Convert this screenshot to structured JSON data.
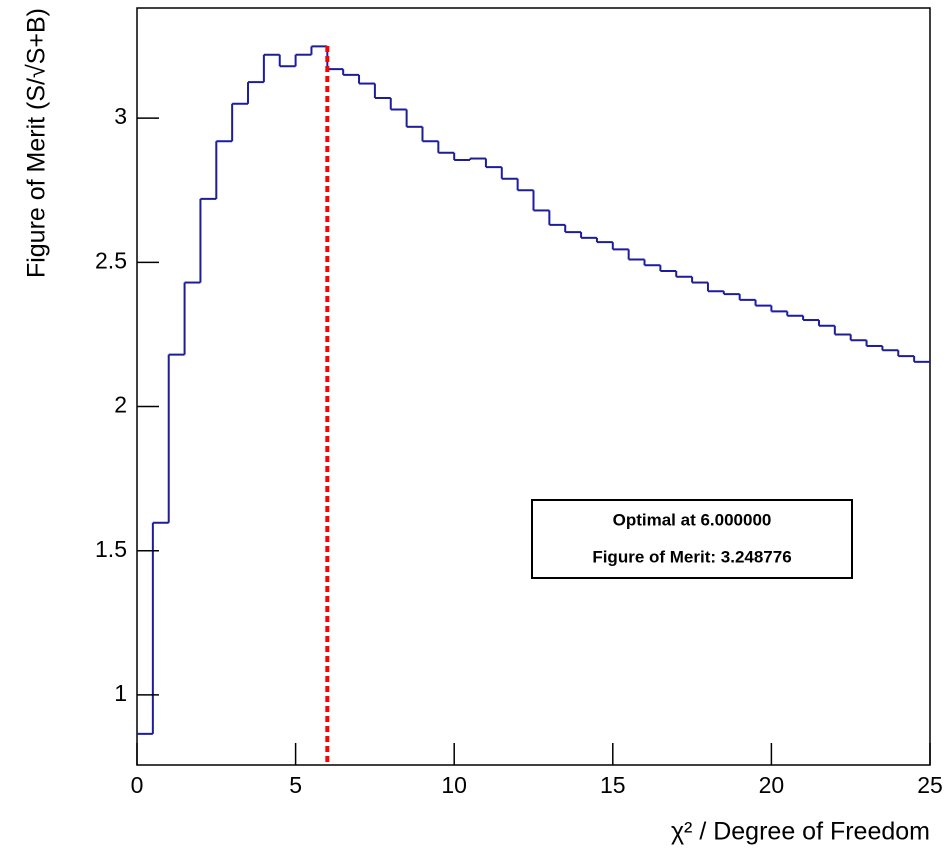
{
  "chart_data": {
    "type": "histogram",
    "x_label": "χ² / Degree of Freedom",
    "y_label": "Figure of Merit (S/√S+B)",
    "bins": [
      0,
      0.5,
      1,
      1.5,
      2,
      2.5,
      3,
      3.5,
      4,
      4.5,
      5,
      5.5,
      6,
      6.5,
      7,
      7.5,
      8,
      8.5,
      9,
      9.5,
      10,
      10.5,
      11,
      11.5,
      12,
      12.5,
      13,
      13.5,
      14,
      14.5,
      15,
      15.5,
      16,
      16.5,
      17,
      17.5,
      18,
      18.5,
      19,
      19.5,
      20,
      20.5,
      21,
      21.5,
      22,
      22.5,
      23,
      23.5,
      24,
      24.5,
      25
    ],
    "values": [
      0.865,
      1.597,
      2.18,
      2.43,
      2.72,
      2.92,
      3.05,
      3.125,
      3.22,
      3.18,
      3.22,
      3.248776,
      3.17,
      3.15,
      3.12,
      3.07,
      3.03,
      2.97,
      2.92,
      2.88,
      2.855,
      2.86,
      2.83,
      2.79,
      2.75,
      2.68,
      2.63,
      2.605,
      2.585,
      2.57,
      2.545,
      2.51,
      2.49,
      2.47,
      2.45,
      2.43,
      2.4,
      2.39,
      2.37,
      2.35,
      2.33,
      2.315,
      2.3,
      2.28,
      2.25,
      2.23,
      2.21,
      2.195,
      2.175,
      2.155
    ],
    "color": "#1c1c9c",
    "xlim": [
      0,
      25
    ],
    "ylim": [
      0.757,
      3.382
    ],
    "xticks": [
      0,
      5,
      10,
      15,
      20,
      25
    ],
    "yticks": [
      1,
      1.5,
      2,
      2.5,
      3
    ],
    "marker_line": {
      "x": 6,
      "color": "#ff0000"
    },
    "annotations": [
      "Optimal at 6.000000",
      "Figure of Merit: 3.248776"
    ]
  }
}
